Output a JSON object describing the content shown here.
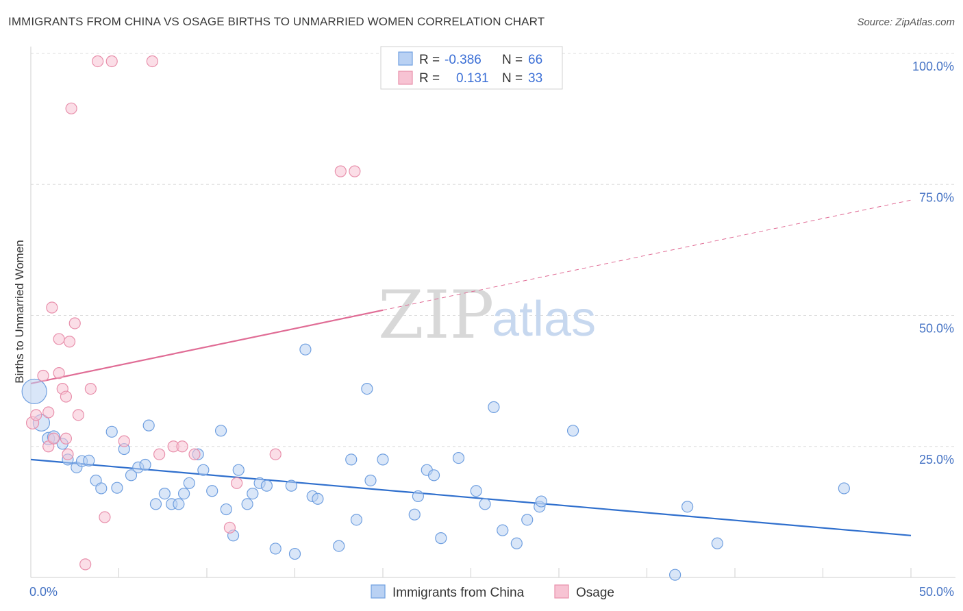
{
  "header": {
    "title": "IMMIGRANTS FROM CHINA VS OSAGE BIRTHS TO UNMARRIED WOMEN CORRELATION CHART",
    "source": "Source: ZipAtlas.com"
  },
  "watermark": {
    "zip": "ZIP",
    "atlas": "atlas"
  },
  "legend": {
    "series": [
      {
        "r_label": "R =",
        "r_value": "-0.386",
        "n_label": "N =",
        "n_value": "66"
      },
      {
        "r_label": "R =",
        "r_value": "0.131",
        "n_label": "N =",
        "n_value": "33"
      }
    ]
  },
  "chart_data": {
    "type": "scatter",
    "title": "IMMIGRANTS FROM CHINA VS OSAGE BIRTHS TO UNMARRIED WOMEN CORRELATION CHART",
    "xlabel": "",
    "ylabel": "Births to Unmarried Women",
    "xlim": [
      0,
      50
    ],
    "ylim": [
      0,
      100
    ],
    "x_tick_labels": [
      "0.0%",
      "50.0%"
    ],
    "y_ticks": [
      {
        "value": 25,
        "label": "25.0%"
      },
      {
        "value": 50,
        "label": "50.0%"
      },
      {
        "value": 75,
        "label": "75.0%"
      },
      {
        "value": 100,
        "label": "100.0%"
      }
    ],
    "grid": true,
    "legend_position": "top-center",
    "series": [
      {
        "name": "Immigrants from China",
        "color": "#6f9fe0",
        "fill": "#b9d1f3",
        "line_color": "#2f6fcd",
        "trend": {
          "x0": 0,
          "y0": 22.5,
          "x1": 50,
          "y1": 8.0,
          "dashed_from": null
        },
        "points": [
          [
            0.2,
            35.5,
            18
          ],
          [
            0.6,
            29.5,
            12
          ],
          [
            1.0,
            26.5,
            9
          ],
          [
            1.3,
            26.8,
            9
          ],
          [
            1.8,
            25.5,
            8
          ],
          [
            2.1,
            22.5,
            8
          ],
          [
            2.6,
            21.0,
            8
          ],
          [
            2.9,
            22.2,
            8
          ],
          [
            3.3,
            22.3,
            8
          ],
          [
            3.7,
            18.5,
            8
          ],
          [
            4.0,
            17.0,
            8
          ],
          [
            4.6,
            27.8,
            8
          ],
          [
            4.9,
            17.1,
            8
          ],
          [
            5.3,
            24.5,
            8
          ],
          [
            5.7,
            19.5,
            8
          ],
          [
            6.1,
            21.0,
            8
          ],
          [
            6.5,
            21.5,
            8
          ],
          [
            6.7,
            29.0,
            8
          ],
          [
            7.1,
            14.0,
            8
          ],
          [
            7.6,
            16.0,
            8
          ],
          [
            8.0,
            14.0,
            8
          ],
          [
            8.4,
            14.0,
            8
          ],
          [
            8.7,
            16.0,
            8
          ],
          [
            9.0,
            18.0,
            8
          ],
          [
            9.5,
            23.5,
            8
          ],
          [
            9.8,
            20.5,
            8
          ],
          [
            10.3,
            16.5,
            8
          ],
          [
            10.8,
            28.0,
            8
          ],
          [
            11.1,
            13.0,
            8
          ],
          [
            11.5,
            8.0,
            8
          ],
          [
            11.8,
            20.5,
            8
          ],
          [
            12.3,
            14.0,
            8
          ],
          [
            12.6,
            16.0,
            8
          ],
          [
            13.0,
            18.0,
            8
          ],
          [
            13.4,
            17.5,
            8
          ],
          [
            13.9,
            5.5,
            8
          ],
          [
            14.8,
            17.5,
            8
          ],
          [
            15.0,
            4.5,
            8
          ],
          [
            15.6,
            43.5,
            8
          ],
          [
            16.0,
            15.5,
            8
          ],
          [
            16.3,
            15.0,
            8
          ],
          [
            17.5,
            6.0,
            8
          ],
          [
            18.2,
            22.5,
            8
          ],
          [
            18.5,
            11.0,
            8
          ],
          [
            19.1,
            36.0,
            8
          ],
          [
            19.3,
            18.5,
            8
          ],
          [
            20.0,
            22.5,
            8
          ],
          [
            21.8,
            12.0,
            8
          ],
          [
            22.0,
            15.5,
            8
          ],
          [
            22.5,
            20.5,
            8
          ],
          [
            22.9,
            19.5,
            8
          ],
          [
            23.3,
            7.5,
            8
          ],
          [
            24.3,
            22.8,
            8
          ],
          [
            25.3,
            16.5,
            8
          ],
          [
            25.8,
            14.0,
            8
          ],
          [
            26.3,
            32.5,
            8
          ],
          [
            26.8,
            9.0,
            8
          ],
          [
            27.6,
            6.5,
            8
          ],
          [
            28.2,
            11.0,
            8
          ],
          [
            28.9,
            13.5,
            8
          ],
          [
            29.0,
            14.5,
            8
          ],
          [
            30.8,
            28.0,
            8
          ],
          [
            36.6,
            0.5,
            8
          ],
          [
            37.3,
            13.5,
            8
          ],
          [
            39.0,
            6.5,
            8
          ],
          [
            46.2,
            17.0,
            8
          ]
        ]
      },
      {
        "name": "Osage",
        "color": "#e88fab",
        "fill": "#f7c3d3",
        "line_color": "#e06c95",
        "trend": {
          "x0": 0,
          "y0": 37,
          "x1": 50,
          "y1": 72,
          "solid_until": 20
        },
        "points": [
          [
            0.1,
            29.5,
            9
          ],
          [
            0.3,
            31.0,
            8
          ],
          [
            0.7,
            38.5,
            8
          ],
          [
            1.0,
            31.5,
            8
          ],
          [
            1.0,
            25.0,
            8
          ],
          [
            1.3,
            26.5,
            8
          ],
          [
            1.2,
            51.5,
            8
          ],
          [
            1.6,
            39.0,
            8
          ],
          [
            1.6,
            45.5,
            8
          ],
          [
            1.8,
            36.0,
            8
          ],
          [
            2.0,
            34.5,
            8
          ],
          [
            2.1,
            23.5,
            8
          ],
          [
            2.2,
            45.0,
            8
          ],
          [
            2.3,
            89.5,
            8
          ],
          [
            2.5,
            48.5,
            8
          ],
          [
            2.7,
            31.0,
            8
          ],
          [
            3.1,
            2.5,
            8
          ],
          [
            3.4,
            36.0,
            8
          ],
          [
            3.8,
            98.5,
            8
          ],
          [
            4.2,
            11.5,
            8
          ],
          [
            4.6,
            98.5,
            8
          ],
          [
            5.3,
            26.0,
            8
          ],
          [
            6.9,
            98.5,
            8
          ],
          [
            7.3,
            23.5,
            8
          ],
          [
            8.1,
            25.0,
            8
          ],
          [
            8.6,
            25.0,
            8
          ],
          [
            9.3,
            23.5,
            8
          ],
          [
            11.3,
            9.5,
            8
          ],
          [
            11.7,
            18.0,
            8
          ],
          [
            13.9,
            23.5,
            8
          ],
          [
            17.6,
            77.5,
            8
          ],
          [
            18.4,
            77.5,
            8
          ],
          [
            2.0,
            26.5,
            8
          ]
        ]
      }
    ]
  }
}
